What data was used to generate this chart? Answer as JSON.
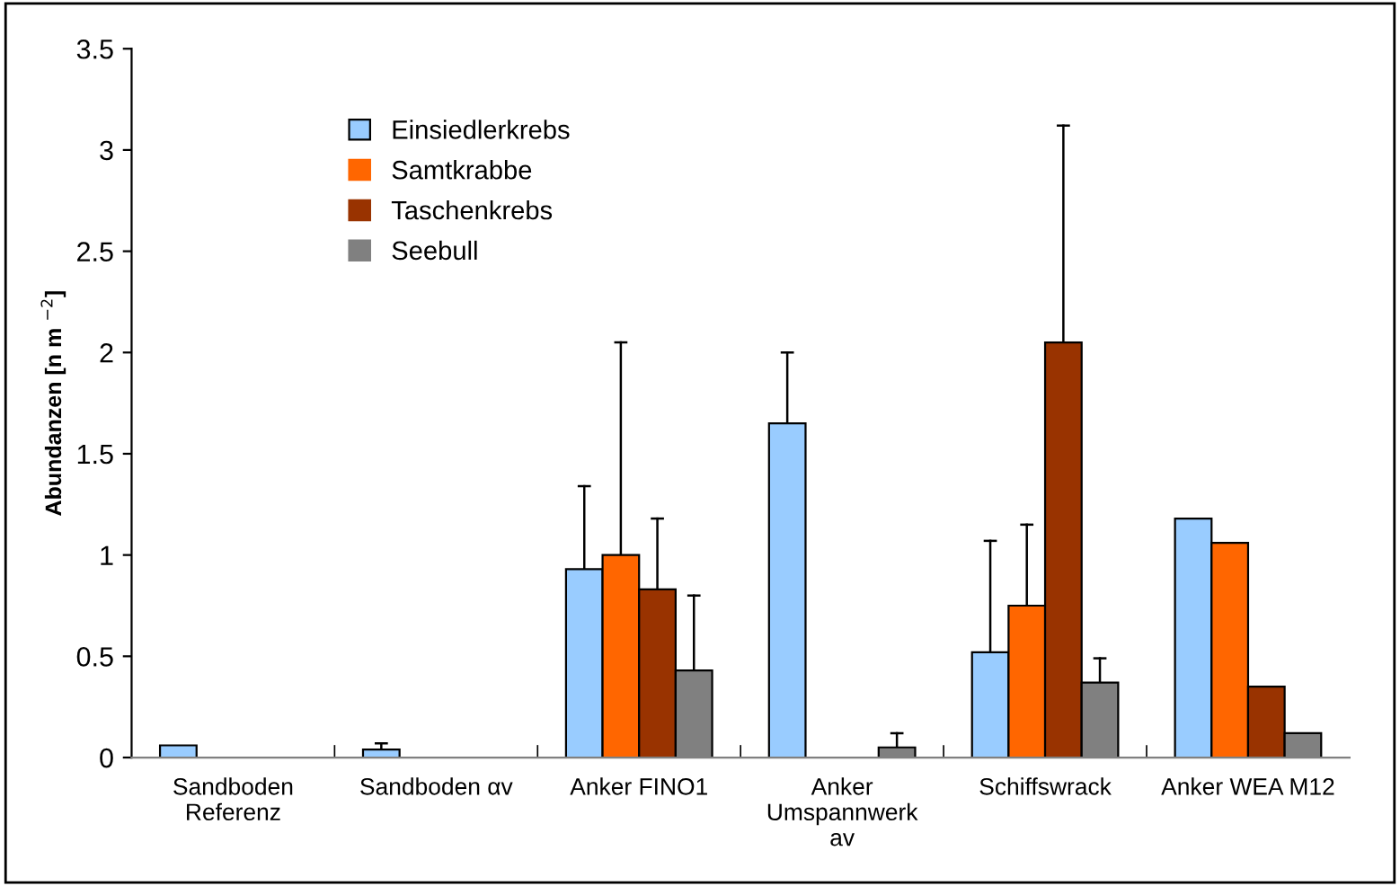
{
  "chart_data": {
    "type": "bar",
    "ylabel": "Abundanzen [n m $^{−2}$]",
    "categories": [
      "Sandboden\nReferenz",
      "Sandboden αv",
      "Anker FINO1",
      "Anker\nUmspannwerk\nav",
      "Schiffswrack",
      "Anker WEA M12"
    ],
    "series": [
      {
        "name": "Einsiedlerkrebs",
        "color": "#99ccff",
        "values": [
          0.06,
          0.04,
          0.93,
          1.65,
          0.52,
          1.18
        ],
        "errors": [
          null,
          [
            0.04,
            0.07
          ],
          [
            0.93,
            1.34
          ],
          [
            1.65,
            2.0
          ],
          [
            0.52,
            1.07
          ],
          null
        ]
      },
      {
        "name": "Samtkrabbe",
        "color": "#ff6600",
        "values": [
          0,
          0,
          1.0,
          0,
          0.75,
          1.06
        ],
        "errors": [
          null,
          null,
          [
            1.0,
            2.05
          ],
          null,
          [
            0.75,
            1.15
          ],
          null
        ]
      },
      {
        "name": "Taschenkrebs",
        "color": "#993300",
        "values": [
          0,
          0,
          0.83,
          0,
          2.05,
          0.35
        ],
        "errors": [
          null,
          null,
          [
            0.83,
            1.18
          ],
          null,
          [
            2.05,
            3.12
          ],
          null
        ]
      },
      {
        "name": "Seebull",
        "color": "#808080",
        "values": [
          0,
          0,
          0.43,
          0.05,
          0.37,
          0.12
        ],
        "errors": [
          null,
          null,
          [
            0.43,
            0.8
          ],
          [
            0.05,
            0.12
          ],
          [
            0.37,
            0.49
          ],
          null
        ]
      }
    ],
    "ylim": [
      0,
      3.5
    ],
    "yticks": [
      0,
      0.5,
      1,
      1.5,
      2,
      2.5,
      3,
      3.5
    ],
    "grid": false,
    "legend": "top left"
  }
}
